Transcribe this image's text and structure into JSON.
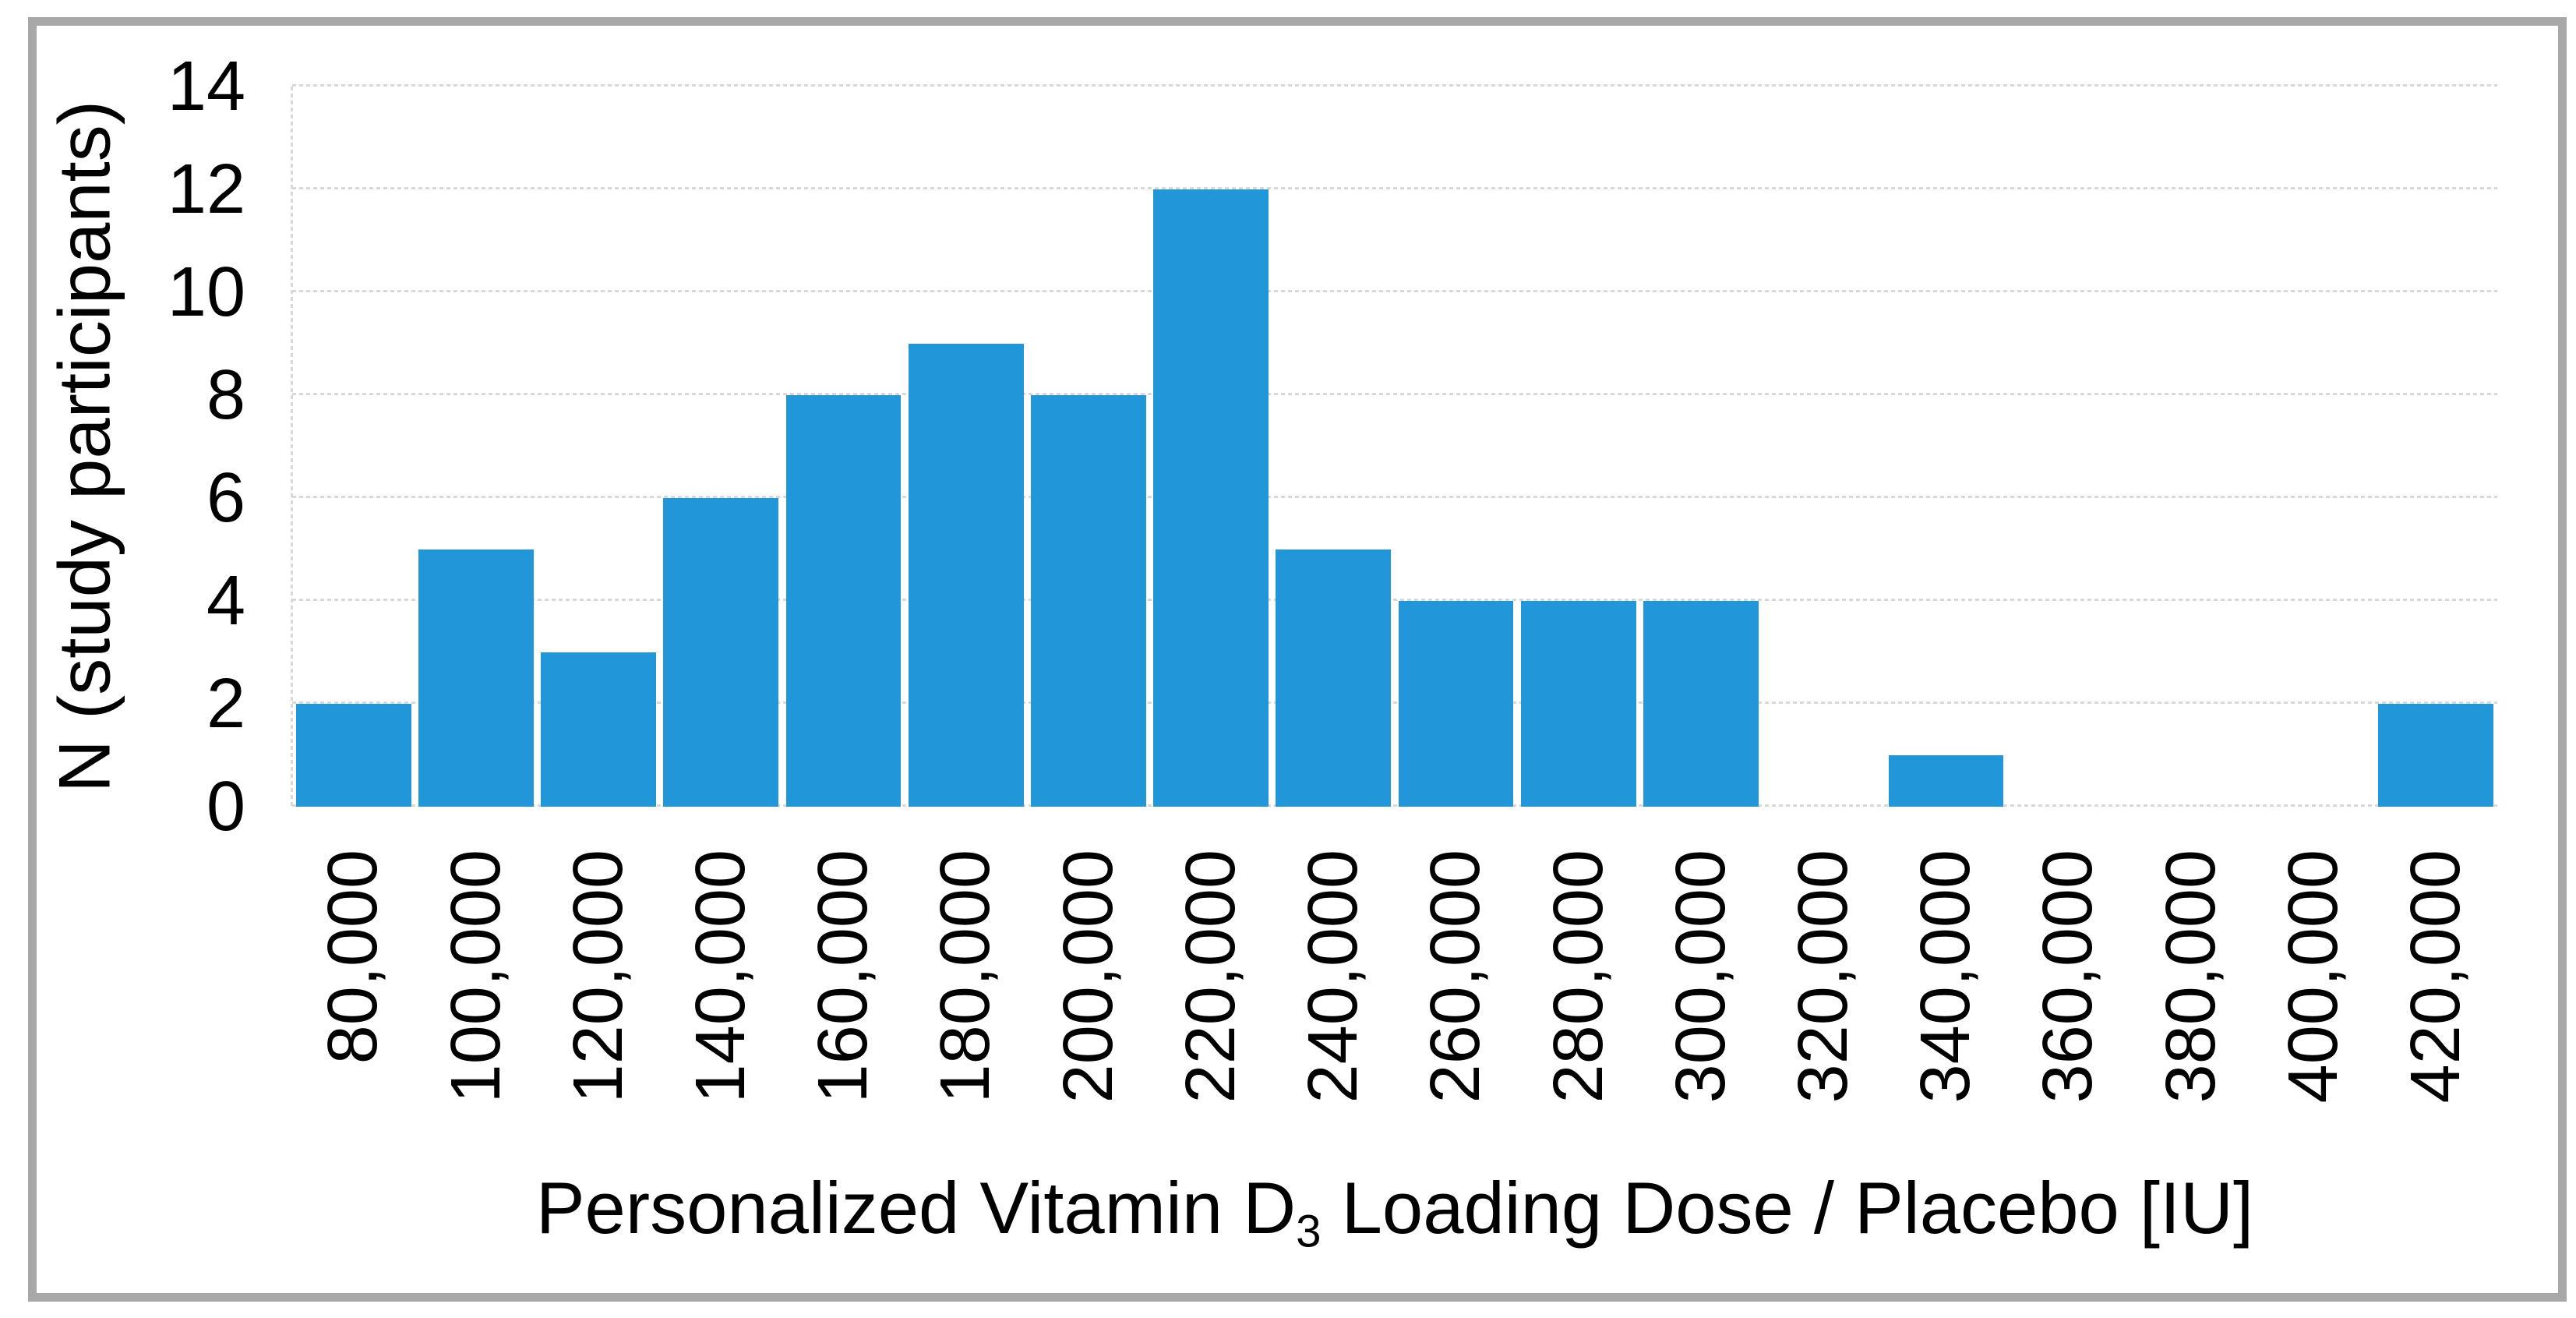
{
  "page": {
    "background": "#ffffff",
    "frame_border_color": "#a8a8a8"
  },
  "chart_data": {
    "type": "bar",
    "title": "",
    "categories": [
      "80,000",
      "100,000",
      "120,000",
      "140,000",
      "160,000",
      "180,000",
      "200,000",
      "220,000",
      "240,000",
      "260,000",
      "280,000",
      "300,000",
      "320,000",
      "340,000",
      "360,000",
      "380,000",
      "400,000",
      "420,000"
    ],
    "values": [
      2,
      5,
      3,
      6,
      8,
      9,
      8,
      12,
      5,
      4,
      4,
      4,
      0,
      1,
      0,
      0,
      0,
      2
    ],
    "xlabel": "Personalized Vitamin D3 Loading Dose / Placebo [IU]",
    "xlabel_parts": {
      "prefix": "Personalized Vitamin D",
      "subscript": "3",
      "suffix": " Loading Dose / Placebo [IU]"
    },
    "ylabel": "N (study participants)",
    "ylim": [
      0,
      14
    ],
    "yticks": [
      0,
      2,
      4,
      6,
      8,
      10,
      12,
      14
    ],
    "grid": true,
    "gridline_style": "dotted",
    "legend": false,
    "bar_color": "#2196d8",
    "gridline_color": "#d8d8d8",
    "axis_text_color": "#000000",
    "bar_gap_ratio": 0.06
  }
}
